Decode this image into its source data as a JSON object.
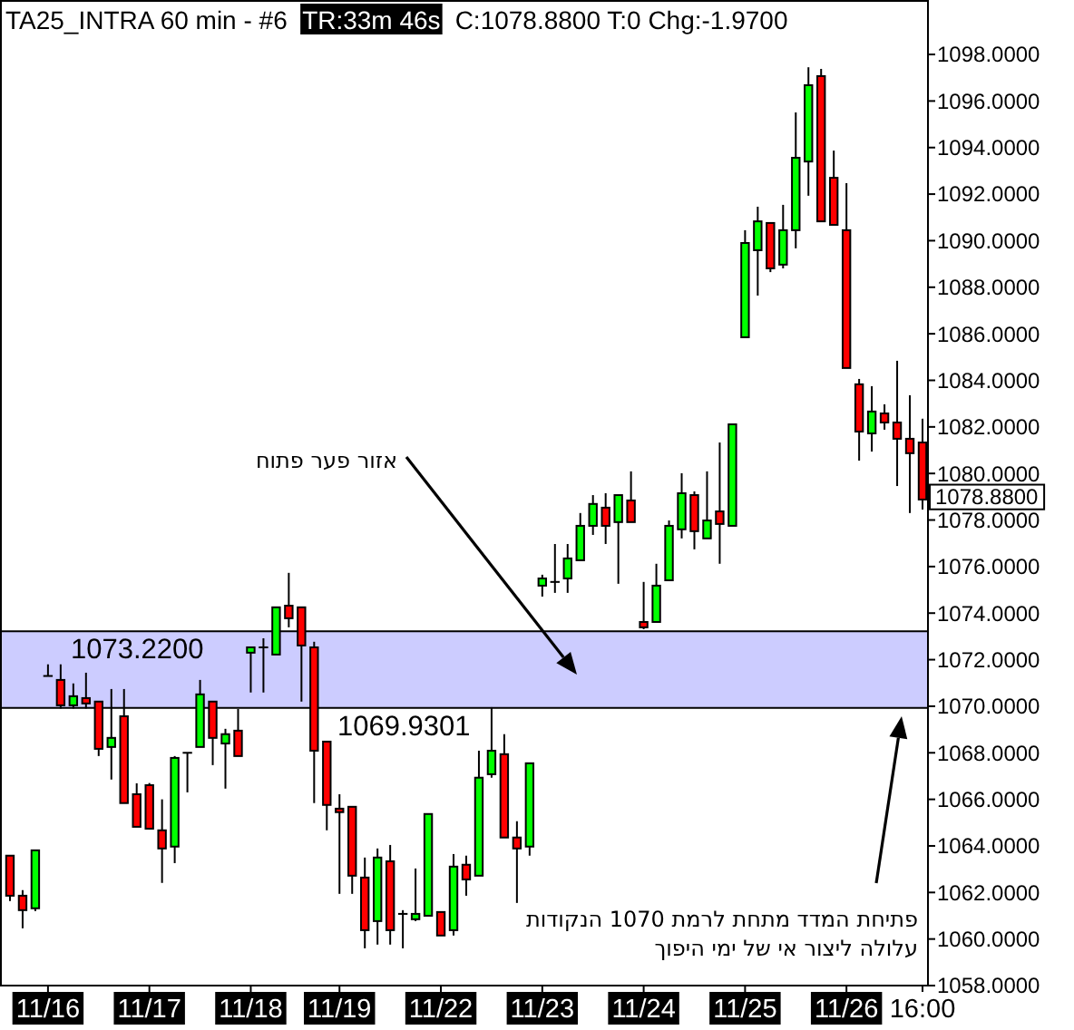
{
  "chart_data": {
    "type": "candlestick",
    "title": "TA25_INTRA  60 min  - #6",
    "subtitle": "TR:33m 46s",
    "categories": [
      null,
      null,
      null,
      "11/16",
      null,
      null,
      null,
      null,
      null,
      null,
      null,
      "11/17",
      null,
      null,
      null,
      null,
      null,
      null,
      null,
      "11/18",
      null,
      null,
      null,
      null,
      null,
      null,
      "11/19",
      null,
      null,
      null,
      null,
      null,
      null,
      null,
      "11/22",
      null,
      null,
      null,
      null,
      null,
      null,
      null,
      "11/23",
      null,
      null,
      null,
      null,
      null,
      null,
      null,
      "11/24",
      null,
      null,
      null,
      null,
      null,
      null,
      null,
      "11/25",
      null,
      null,
      null,
      null,
      null,
      null,
      null,
      "11/26",
      null,
      null,
      null,
      null,
      null,
      "16:00"
    ],
    "ohlc": [
      [
        1063.58,
        1063.6,
        1061.63,
        1061.86
      ],
      [
        1061.86,
        1062.1,
        1060.46,
        1061.24
      ],
      [
        1061.32,
        1063.81,
        1061.2,
        1063.81
      ],
      [
        1071.3,
        1071.8,
        1071.3,
        1071.3
      ],
      [
        1071.13,
        1071.8,
        1069.9,
        1070.04
      ],
      [
        1070.04,
        1070.98,
        1069.9,
        1070.43
      ],
      [
        1070.35,
        1071.44,
        1069.9,
        1070.12
      ],
      [
        1070.2,
        1070.2,
        1067.86,
        1068.17
      ],
      [
        1068.25,
        1070.74,
        1066.85,
        1068.64
      ],
      [
        1069.57,
        1070.74,
        1065.84,
        1065.84
      ],
      [
        1066.22,
        1066.69,
        1064.82,
        1064.82
      ],
      [
        1066.61,
        1066.7,
        1064.7,
        1064.74
      ],
      [
        1064.67,
        1066.0,
        1062.41,
        1063.89
      ],
      [
        1063.97,
        1067.86,
        1063.26,
        1067.78
      ],
      [
        1068.0,
        1068.0,
        1066.3,
        1068.0
      ],
      [
        1068.25,
        1071.13,
        1068.25,
        1070.51
      ],
      [
        1070.2,
        1070.2,
        1067.47,
        1068.64
      ],
      [
        1068.4,
        1069.03,
        1066.46,
        1068.8
      ],
      [
        1068.95,
        1069.88,
        1067.86,
        1067.86
      ],
      [
        1072.3,
        1072.53,
        1070.59,
        1072.53
      ],
      [
        1072.53,
        1072.92,
        1070.59,
        1072.53
      ],
      [
        1072.22,
        1074.25,
        1072.22,
        1074.25
      ],
      [
        1074.32,
        1075.73,
        1073.39,
        1073.78
      ],
      [
        1074.25,
        1074.25,
        1070.2,
        1072.61
      ],
      [
        1072.53,
        1072.77,
        1065.84,
        1068.09
      ],
      [
        1068.48,
        1068.48,
        1064.67,
        1065.76
      ],
      [
        1065.6,
        1066.22,
        1061.94,
        1065.45
      ],
      [
        1065.68,
        1065.68,
        1061.94,
        1062.72
      ],
      [
        1062.64,
        1063.5,
        1059.6,
        1060.38
      ],
      [
        1060.77,
        1063.89,
        1059.76,
        1063.5
      ],
      [
        1063.34,
        1064.04,
        1059.76,
        1060.38
      ],
      [
        1061.08,
        1061.24,
        1059.6,
        1061.08
      ],
      [
        1060.85,
        1063.03,
        1060.77,
        1061.08
      ],
      [
        1061.0,
        1065.37,
        1061.0,
        1065.37
      ],
      [
        1061.16,
        1061.16,
        1060.15,
        1060.15
      ],
      [
        1060.38,
        1063.65,
        1060.15,
        1063.11
      ],
      [
        1063.19,
        1063.58,
        1061.86,
        1062.56
      ],
      [
        1062.72,
        1068.09,
        1062.72,
        1066.93
      ],
      [
        1067.08,
        1069.96,
        1066.93,
        1068.09
      ],
      [
        1067.94,
        1068.8,
        1064.36,
        1064.36
      ],
      [
        1064.36,
        1065.06,
        1061.55,
        1063.89
      ],
      [
        1063.97,
        1067.55,
        1063.58,
        1067.55
      ],
      [
        1075.18,
        1075.65,
        1074.71,
        1075.49
      ],
      [
        1075.34,
        1076.97,
        1074.87,
        1075.34
      ],
      [
        1075.49,
        1076.97,
        1074.87,
        1076.35
      ],
      [
        1076.27,
        1078.3,
        1076.27,
        1077.75
      ],
      [
        1077.75,
        1079.07,
        1077.36,
        1078.69
      ],
      [
        1078.53,
        1079.15,
        1076.97,
        1077.75
      ],
      [
        1077.91,
        1079.07,
        1075.26,
        1079.07
      ],
      [
        1078.84,
        1080.09,
        1077.91,
        1077.91
      ],
      [
        1073.62,
        1075.34,
        1073.31,
        1073.39
      ],
      [
        1073.62,
        1076.12,
        1073.62,
        1075.18
      ],
      [
        1075.41,
        1077.98,
        1075.41,
        1077.75
      ],
      [
        1077.6,
        1080.01,
        1077.21,
        1079.15
      ],
      [
        1079.07,
        1079.23,
        1076.74,
        1077.52
      ],
      [
        1077.21,
        1080.09,
        1077.21,
        1077.98
      ],
      [
        1078.37,
        1081.33,
        1076.12,
        1077.83
      ],
      [
        1077.75,
        1082.11,
        1077.75,
        1082.11
      ],
      [
        1085.85,
        1090.45,
        1085.85,
        1089.9
      ],
      [
        1089.59,
        1091.46,
        1087.64,
        1090.83
      ],
      [
        1090.76,
        1090.76,
        1088.65,
        1088.81
      ],
      [
        1088.97,
        1091.54,
        1088.81,
        1090.45
      ],
      [
        1090.45,
        1095.51,
        1089.67,
        1093.56
      ],
      [
        1093.4,
        1097.45,
        1091.93,
        1096.68
      ],
      [
        1097.07,
        1097.38,
        1090.83,
        1090.83
      ],
      [
        1092.7,
        1093.87,
        1090.68,
        1090.68
      ],
      [
        1090.45,
        1092.47,
        1084.53,
        1084.53
      ],
      [
        1083.83,
        1084.06,
        1080.55,
        1081.8
      ],
      [
        1081.72,
        1083.75,
        1080.94,
        1082.66
      ],
      [
        1082.58,
        1082.97,
        1081.88,
        1082.19
      ],
      [
        1082.19,
        1084.84,
        1079.46,
        1081.49
      ],
      [
        1081.49,
        1083.36,
        1078.3,
        1080.87
      ],
      [
        1081.33,
        1082.35,
        1078.45,
        1078.88
      ]
    ],
    "colors": [
      "#ff0000",
      "#ff0000",
      "#00ff00",
      "#000000",
      "#ff0000",
      "#00ff00",
      "#ff0000",
      "#ff0000",
      "#00ff00",
      "#ff0000",
      "#ff0000",
      "#ff0000",
      "#ff0000",
      "#00ff00",
      "#000000",
      "#00ff00",
      "#ff0000",
      "#00ff00",
      "#ff0000",
      "#00ff00",
      "#000000",
      "#00ff00",
      "#ff0000",
      "#ff0000",
      "#ff0000",
      "#ff0000",
      "#ff0000",
      "#ff0000",
      "#ff0000",
      "#00ff00",
      "#ff0000",
      "#000000",
      "#00ff00",
      "#00ff00",
      "#ff0000",
      "#00ff00",
      "#ff0000",
      "#00ff00",
      "#00ff00",
      "#ff0000",
      "#ff0000",
      "#00ff00",
      "#00ff00",
      "#000000",
      "#00ff00",
      "#00ff00",
      "#00ff00",
      "#ff0000",
      "#00ff00",
      "#ff0000",
      "#ff0000",
      "#00ff00",
      "#00ff00",
      "#00ff00",
      "#ff0000",
      "#00ff00",
      "#ff0000",
      "#00ff00",
      "#00ff00",
      "#00ff00",
      "#ff0000",
      "#00ff00",
      "#00ff00",
      "#00ff00",
      "#ff0000",
      "#ff0000",
      "#ff0000",
      "#ff0000",
      "#00ff00",
      "#ff0000",
      "#ff0000",
      "#ff0000",
      "#ff0000"
    ],
    "ylim": [
      1058,
      1100.3
    ],
    "yticks": [
      {
        "value": 1058,
        "label": "1058.0000"
      },
      {
        "value": 1060,
        "label": "1060.0000"
      },
      {
        "value": 1062,
        "label": "1062.0000"
      },
      {
        "value": 1064,
        "label": "1064.0000"
      },
      {
        "value": 1066,
        "label": "1066.0000"
      },
      {
        "value": 1068,
        "label": "1068.0000"
      },
      {
        "value": 1070,
        "label": "1070.0000"
      },
      {
        "value": 1072,
        "label": "1072.0000"
      },
      {
        "value": 1074,
        "label": "1074.0000"
      },
      {
        "value": 1076,
        "label": "1076.0000"
      },
      {
        "value": 1078,
        "label": "1078.0000"
      },
      {
        "value": 1080,
        "label": "1080.0000"
      },
      {
        "value": 1082,
        "label": "1082.0000"
      },
      {
        "value": 1084,
        "label": "1084.0000"
      },
      {
        "value": 1086,
        "label": "1086.0000"
      },
      {
        "value": 1088,
        "label": "1088.0000"
      },
      {
        "value": 1090,
        "label": "1090.0000"
      },
      {
        "value": 1092,
        "label": "1092.0000"
      },
      {
        "value": 1094,
        "label": "1094.0000"
      },
      {
        "value": 1096,
        "label": "1096.0000"
      },
      {
        "value": 1098,
        "label": "1098.0000"
      }
    ],
    "bands": [
      {
        "axis": "y",
        "from": 1069.9301,
        "to": 1073.22,
        "color": "#ccccff"
      }
    ],
    "ref_lines": [
      {
        "axis": "y",
        "value": 1073.22,
        "label": "1073.2200",
        "color": "#000000"
      },
      {
        "axis": "y",
        "value": 1069.9301,
        "label": "1069.9301",
        "color": "#000000"
      }
    ],
    "annotations": [
      "C:1078.8800  T:0  Chg:-1.9700",
      "1078.8800",
      "אזור פער פתוח",
      "פתיחת המדד מתחת לרמת 1070 הנקודות עלולה ליצור אי של ימי היפוך"
    ]
  }
}
